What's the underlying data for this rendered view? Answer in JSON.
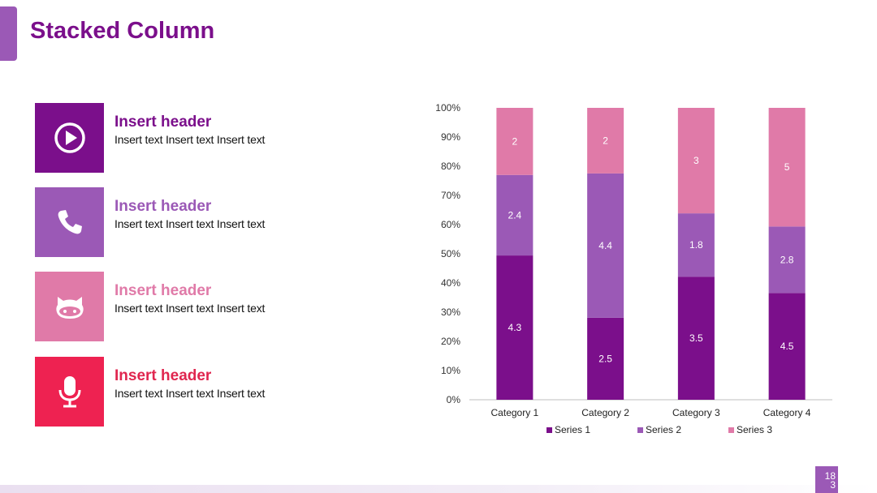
{
  "slide": {
    "title": "Stacked Column",
    "page_number": "18\n3"
  },
  "items": [
    {
      "header": "Insert header",
      "text": "Insert text Insert text Insert text",
      "color": "#7b0f8b",
      "header_color": "#7b0f8b",
      "icon": "play-icon"
    },
    {
      "header": "Insert header",
      "text": "Insert text Insert text Insert text",
      "color": "#9b59b6",
      "header_color": "#9b59b6",
      "icon": "phone-icon"
    },
    {
      "header": "Insert header",
      "text": "Insert text Insert text Insert text",
      "color": "#e07aa8",
      "header_color": "#e07aa8",
      "icon": "github-icon"
    },
    {
      "header": "Insert header",
      "text": "Insert text Insert text Insert text",
      "color": "#ee2251",
      "header_color": "#e0264f",
      "icon": "microphone-icon"
    }
  ],
  "chart_data": {
    "type": "bar",
    "stacked": "percent",
    "categories": [
      "Category 1",
      "Category 2",
      "Category 3",
      "Category 4"
    ],
    "series": [
      {
        "name": "Series 1",
        "values": [
          4.3,
          2.5,
          3.5,
          4.5
        ],
        "color": "#7b0f8b"
      },
      {
        "name": "Series 2",
        "values": [
          2.4,
          4.4,
          1.8,
          2.8
        ],
        "color": "#9b59b6"
      },
      {
        "name": "Series 3",
        "values": [
          2,
          2,
          3,
          5
        ],
        "color": "#e07aa8"
      }
    ],
    "yticks": [
      "0%",
      "10%",
      "20%",
      "30%",
      "40%",
      "50%",
      "60%",
      "70%",
      "80%",
      "90%",
      "100%"
    ],
    "ylim": [
      0,
      100
    ],
    "legend": "bottom",
    "grid": false
  }
}
